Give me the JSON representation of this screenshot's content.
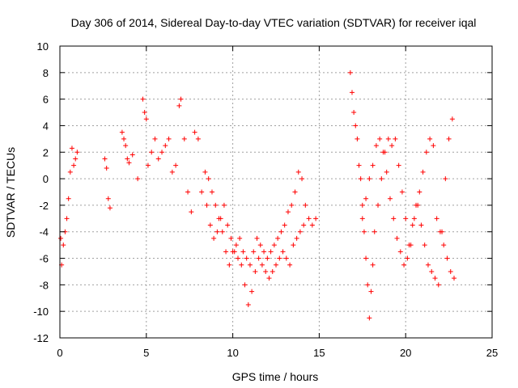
{
  "chart_data": {
    "type": "scatter",
    "title": "Day 306 of 2014, Sidereal Day-to-day VTEC variation (SDTVAR) for receiver iqal",
    "xlabel": "GPS time / hours",
    "ylabel": "SDTVAR / TECUs",
    "xlim": [
      0,
      25
    ],
    "ylim": [
      -12,
      10
    ],
    "x_ticks": [
      0,
      5,
      10,
      15,
      20,
      25
    ],
    "y_ticks": [
      -12,
      -10,
      -8,
      -6,
      -4,
      -2,
      0,
      2,
      4,
      6,
      8,
      10
    ],
    "grid": true,
    "marker": "+",
    "color": "#ff0000",
    "series": [
      {
        "name": "SDTVAR",
        "x": [
          0.05,
          0.1,
          0.2,
          0.3,
          0.4,
          0.5,
          0.6,
          0.7,
          0.8,
          0.9,
          1.0,
          2.6,
          2.7,
          2.8,
          2.9,
          3.6,
          3.7,
          3.8,
          3.9,
          4.0,
          4.2,
          4.5,
          4.8,
          4.9,
          5.0,
          5.1,
          5.3,
          5.5,
          5.7,
          5.9,
          6.1,
          6.3,
          6.5,
          6.7,
          6.9,
          7.0,
          7.2,
          7.4,
          7.6,
          7.8,
          8.0,
          8.2,
          8.4,
          8.6,
          8.8,
          9.0,
          9.2,
          9.4,
          9.6,
          9.8,
          10.0,
          10.2,
          10.4,
          10.6,
          10.8,
          11.0,
          11.2,
          11.4,
          11.6,
          11.8,
          12.0,
          12.2,
          12.4,
          12.6,
          12.8,
          13.0,
          13.2,
          13.4,
          13.6,
          13.8,
          14.0,
          14.2,
          14.4,
          14.6,
          14.8,
          8.5,
          8.7,
          8.9,
          9.1,
          9.3,
          9.5,
          9.7,
          9.9,
          10.1,
          10.3,
          10.5,
          10.7,
          10.9,
          11.1,
          11.3,
          11.5,
          11.7,
          11.9,
          12.1,
          12.3,
          12.5,
          12.7,
          12.9,
          13.1,
          13.3,
          13.5,
          13.7,
          13.9,
          14.1,
          16.8,
          16.9,
          17.0,
          17.1,
          17.2,
          17.3,
          17.4,
          17.5,
          17.6,
          17.7,
          17.8,
          17.9,
          18.0,
          18.1,
          18.2,
          18.4,
          18.6,
          18.8,
          19.0,
          19.2,
          19.4,
          19.6,
          19.8,
          20.0,
          20.2,
          20.4,
          20.6,
          20.8,
          21.0,
          21.2,
          21.4,
          21.6,
          21.8,
          22.0,
          22.2,
          22.4,
          22.6,
          22.8,
          17.5,
          17.7,
          17.9,
          18.1,
          18.3,
          18.5,
          18.7,
          18.9,
          19.1,
          19.3,
          19.5,
          19.7,
          19.9,
          20.1,
          20.3,
          20.5,
          20.7,
          20.9,
          21.1,
          21.3,
          21.5,
          21.7,
          21.9,
          22.1,
          22.3,
          22.5,
          22.7
        ],
        "y": [
          -4.5,
          -6.5,
          -5.0,
          -4.0,
          -3.0,
          -1.5,
          0.5,
          2.3,
          1.0,
          1.5,
          2.0,
          1.5,
          0.8,
          -1.5,
          -2.2,
          3.5,
          3.0,
          2.5,
          1.5,
          1.2,
          1.8,
          0.0,
          6.0,
          5.0,
          4.5,
          1.0,
          2.0,
          3.0,
          1.5,
          2.0,
          2.5,
          3.0,
          0.5,
          1.0,
          5.5,
          6.0,
          3.0,
          -1.0,
          -2.5,
          3.5,
          3.0,
          -1.0,
          0.5,
          0.0,
          -1.0,
          -2.0,
          -3.0,
          -4.0,
          -5.5,
          -6.5,
          -5.5,
          -5.0,
          -4.5,
          -5.5,
          -6.0,
          -6.5,
          -5.5,
          -4.5,
          -5.0,
          -5.5,
          -6.0,
          -5.5,
          -5.0,
          -4.5,
          -4.0,
          -3.5,
          -2.5,
          -2.0,
          -1.0,
          0.5,
          0.0,
          -2.0,
          -3.0,
          -3.5,
          -3.0,
          -2.0,
          -3.5,
          -4.5,
          -4.0,
          -3.0,
          -2.0,
          -3.5,
          -4.5,
          -5.5,
          -6.0,
          -6.5,
          -8.0,
          -9.5,
          -8.5,
          -7.0,
          -6.0,
          -6.5,
          -7.0,
          -7.5,
          -7.0,
          -6.5,
          -6.0,
          -5.5,
          -6.0,
          -6.5,
          -5.0,
          -4.5,
          -4.0,
          -3.5,
          8.0,
          6.5,
          5.0,
          4.0,
          3.0,
          1.0,
          0.0,
          -2.0,
          -4.0,
          -6.0,
          -8.0,
          -10.5,
          -8.5,
          -6.5,
          -4.0,
          -2.0,
          0.0,
          2.0,
          3.0,
          2.5,
          3.0,
          1.0,
          -1.0,
          -3.0,
          -5.0,
          -3.5,
          -2.0,
          -1.0,
          0.5,
          2.0,
          3.0,
          2.5,
          -3.0,
          -4.0,
          -5.0,
          -6.0,
          -7.0,
          -7.5,
          -3.0,
          -1.5,
          0.0,
          1.0,
          2.5,
          3.0,
          2.0,
          0.5,
          -1.5,
          -3.0,
          -4.5,
          -5.5,
          -6.5,
          -6.0,
          -5.0,
          -3.0,
          -2.0,
          -3.5,
          -5.0,
          -6.5,
          -7.0,
          -7.5,
          -8.0,
          -4.0,
          0.0,
          3.0,
          4.5
        ]
      }
    ]
  }
}
